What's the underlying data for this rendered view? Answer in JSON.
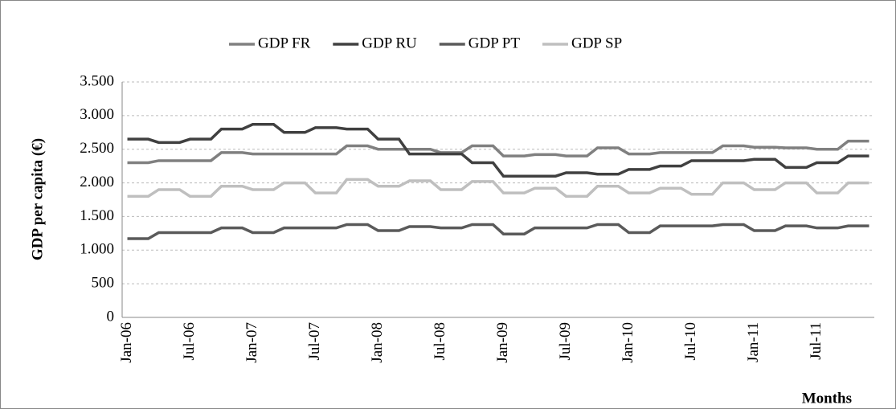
{
  "chart_data": {
    "type": "line",
    "y_label": "GDP per capita (€)",
    "x_label": "Months",
    "categories": [
      "Jan-06",
      null,
      null,
      null,
      null,
      null,
      "Jul-06",
      null,
      null,
      null,
      null,
      null,
      "Jan-07",
      null,
      null,
      null,
      null,
      null,
      "Jul-07",
      null,
      null,
      null,
      null,
      null,
      "Jan-08",
      null,
      null,
      null,
      null,
      null,
      "Jul-08",
      null,
      null,
      null,
      null,
      null,
      "Jan-09",
      null,
      null,
      null,
      null,
      null,
      "Jul-09",
      null,
      null,
      null,
      null,
      null,
      "Jan-10",
      null,
      null,
      null,
      null,
      null,
      "Jul-10",
      null,
      null,
      null,
      null,
      null,
      "Jan-11",
      null,
      null,
      null,
      null,
      null,
      "Jul-11",
      null,
      null,
      null,
      null,
      null
    ],
    "series": [
      {
        "name": "GDP FR",
        "color": "#808080",
        "values": [
          2300,
          2300,
          2300,
          2330,
          2330,
          2330,
          2330,
          2330,
          2330,
          2450,
          2450,
          2450,
          2430,
          2430,
          2430,
          2430,
          2430,
          2430,
          2430,
          2430,
          2430,
          2550,
          2550,
          2550,
          2500,
          2500,
          2500,
          2500,
          2500,
          2500,
          2450,
          2450,
          2450,
          2550,
          2550,
          2550,
          2400,
          2400,
          2400,
          2420,
          2420,
          2420,
          2400,
          2400,
          2400,
          2520,
          2520,
          2520,
          2430,
          2430,
          2430,
          2450,
          2450,
          2450,
          2450,
          2450,
          2450,
          2550,
          2550,
          2550,
          2530,
          2530,
          2530,
          2520,
          2520,
          2520,
          2500,
          2500,
          2500,
          2620,
          2620,
          2620
        ]
      },
      {
        "name": "GDP RU",
        "color": "#404040",
        "values": [
          2650,
          2650,
          2650,
          2600,
          2600,
          2600,
          2650,
          2650,
          2650,
          2800,
          2800,
          2800,
          2870,
          2870,
          2870,
          2750,
          2750,
          2750,
          2820,
          2820,
          2820,
          2800,
          2800,
          2800,
          2650,
          2650,
          2650,
          2430,
          2430,
          2430,
          2430,
          2430,
          2430,
          2300,
          2300,
          2300,
          2100,
          2100,
          2100,
          2100,
          2100,
          2100,
          2150,
          2150,
          2150,
          2130,
          2130,
          2130,
          2200,
          2200,
          2200,
          2250,
          2250,
          2250,
          2330,
          2330,
          2330,
          2330,
          2330,
          2330,
          2350,
          2350,
          2350,
          2230,
          2230,
          2230,
          2300,
          2300,
          2300,
          2400,
          2400,
          2400
        ]
      },
      {
        "name": "GDP PT",
        "color": "#5a5a5a",
        "values": [
          1170,
          1170,
          1170,
          1260,
          1260,
          1260,
          1260,
          1260,
          1260,
          1330,
          1330,
          1330,
          1260,
          1260,
          1260,
          1330,
          1330,
          1330,
          1330,
          1330,
          1330,
          1380,
          1380,
          1380,
          1290,
          1290,
          1290,
          1350,
          1350,
          1350,
          1330,
          1330,
          1330,
          1380,
          1380,
          1380,
          1240,
          1240,
          1240,
          1330,
          1330,
          1330,
          1330,
          1330,
          1330,
          1380,
          1380,
          1380,
          1260,
          1260,
          1260,
          1360,
          1360,
          1360,
          1360,
          1360,
          1360,
          1380,
          1380,
          1380,
          1290,
          1290,
          1290,
          1360,
          1360,
          1360,
          1330,
          1330,
          1330,
          1360,
          1360,
          1360
        ]
      },
      {
        "name": "GDP SP",
        "color": "#bfbfbf",
        "values": [
          1800,
          1800,
          1800,
          1900,
          1900,
          1900,
          1800,
          1800,
          1800,
          1950,
          1950,
          1950,
          1900,
          1900,
          1900,
          2000,
          2000,
          2000,
          1850,
          1850,
          1850,
          2050,
          2050,
          2050,
          1950,
          1950,
          1950,
          2030,
          2030,
          2030,
          1900,
          1900,
          1900,
          2020,
          2020,
          2020,
          1850,
          1850,
          1850,
          1920,
          1920,
          1920,
          1800,
          1800,
          1800,
          1950,
          1950,
          1950,
          1850,
          1850,
          1850,
          1920,
          1920,
          1920,
          1830,
          1830,
          1830,
          2000,
          2000,
          2000,
          1900,
          1900,
          1900,
          2000,
          2000,
          2000,
          1850,
          1850,
          1850,
          2000,
          2000,
          2000
        ]
      }
    ],
    "ylim": [
      0,
      3500
    ],
    "yticks": [
      0,
      500,
      {
        "value": 1000,
        "label": "1.000"
      },
      {
        "value": 1500,
        "label": "1.500"
      },
      {
        "value": 2000,
        "label": "2.000"
      },
      {
        "value": 2500,
        "label": "2.500"
      },
      {
        "value": 3000,
        "label": "3.000"
      },
      {
        "value": 3500,
        "label": "3.500"
      }
    ],
    "grid": true,
    "legend": "top"
  }
}
